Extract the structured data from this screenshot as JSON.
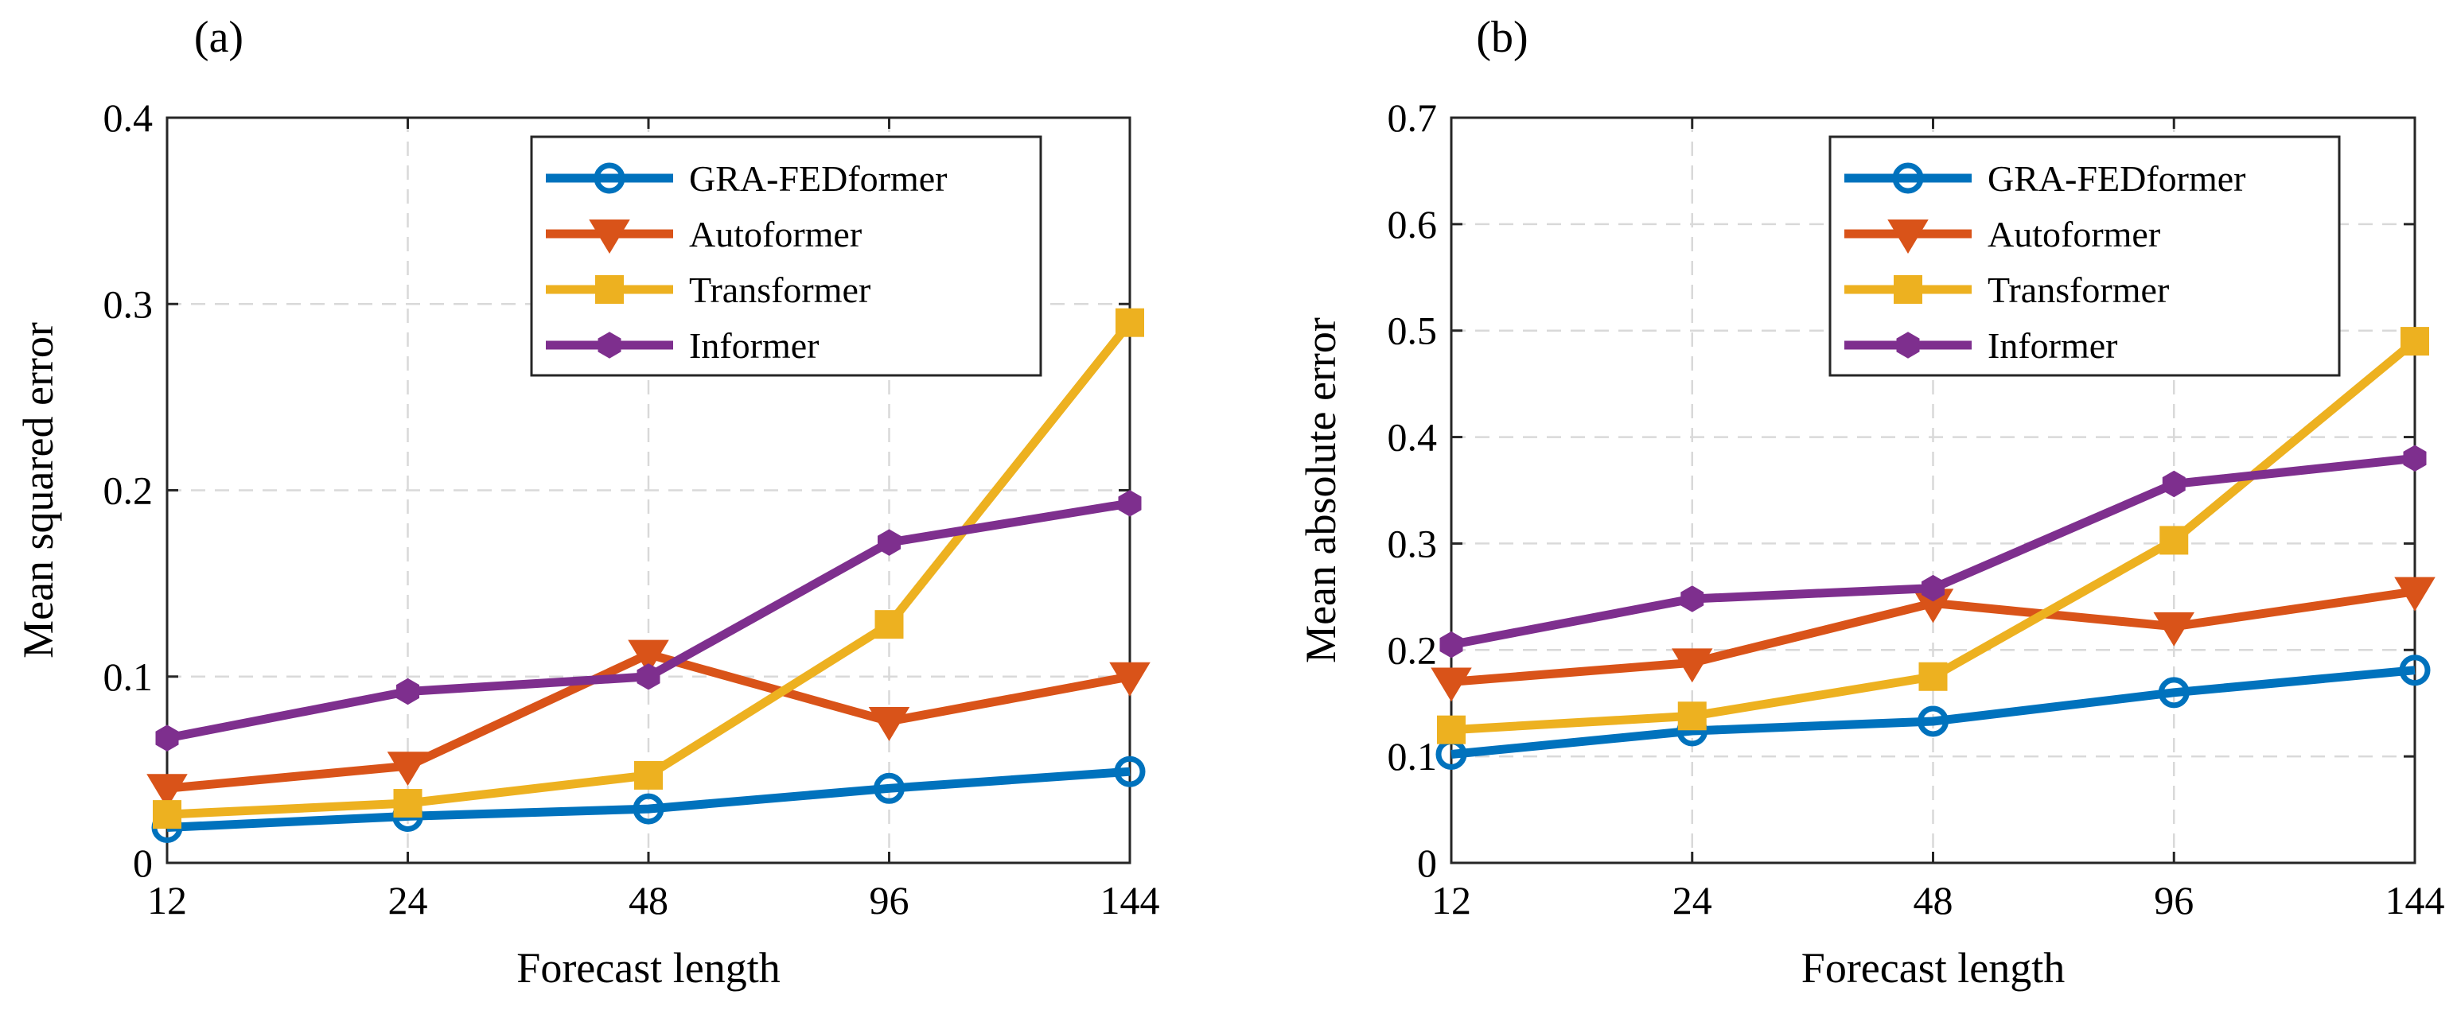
{
  "colors": {
    "GRA-FEDformer": "#0072BD",
    "Autoformer": "#D95319",
    "Transformer": "#EDB120",
    "Informer": "#7E2F8E"
  },
  "chart_data": [
    {
      "panel_label": "(a)",
      "type": "line",
      "xlabel": "Forecast length",
      "ylabel": "Mean squared error",
      "categories": [
        "12",
        "24",
        "48",
        "96",
        "144"
      ],
      "ylim": [
        0,
        0.4
      ],
      "yticks": [
        0,
        0.1,
        0.2,
        0.3,
        0.4
      ],
      "ytick_labels": [
        "0",
        "0.1",
        "0.2",
        "0.3",
        "0.4"
      ],
      "grid": true,
      "legend_position": "top-right",
      "series": [
        {
          "name": "GRA-FEDformer",
          "marker": "circle-open",
          "values": [
            0.019,
            0.025,
            0.029,
            0.04,
            0.049
          ]
        },
        {
          "name": "Autoformer",
          "marker": "triangle-down",
          "values": [
            0.04,
            0.052,
            0.112,
            0.076,
            0.1
          ]
        },
        {
          "name": "Transformer",
          "marker": "square",
          "values": [
            0.026,
            0.032,
            0.047,
            0.128,
            0.29
          ]
        },
        {
          "name": "Informer",
          "marker": "hexagon",
          "values": [
            0.067,
            0.092,
            0.1,
            0.172,
            0.193
          ]
        }
      ]
    },
    {
      "panel_label": "(b)",
      "type": "line",
      "xlabel": "Forecast length",
      "ylabel": "Mean absolute error",
      "categories": [
        "12",
        "24",
        "48",
        "96",
        "144"
      ],
      "ylim": [
        0,
        0.7
      ],
      "yticks": [
        0,
        0.1,
        0.2,
        0.3,
        0.4,
        0.5,
        0.6,
        0.7
      ],
      "ytick_labels": [
        "0",
        "0.1",
        "0.2",
        "0.3",
        "0.4",
        "0.5",
        "0.6",
        "0.7"
      ],
      "grid": true,
      "legend_position": "top-right",
      "series": [
        {
          "name": "GRA-FEDformer",
          "marker": "circle-open",
          "values": [
            0.102,
            0.124,
            0.133,
            0.16,
            0.181
          ]
        },
        {
          "name": "Autoformer",
          "marker": "triangle-down",
          "values": [
            0.17,
            0.188,
            0.244,
            0.222,
            0.255
          ]
        },
        {
          "name": "Transformer",
          "marker": "square",
          "values": [
            0.125,
            0.138,
            0.175,
            0.303,
            0.49
          ]
        },
        {
          "name": "Informer",
          "marker": "hexagon",
          "values": [
            0.205,
            0.248,
            0.258,
            0.356,
            0.38
          ]
        }
      ]
    }
  ]
}
